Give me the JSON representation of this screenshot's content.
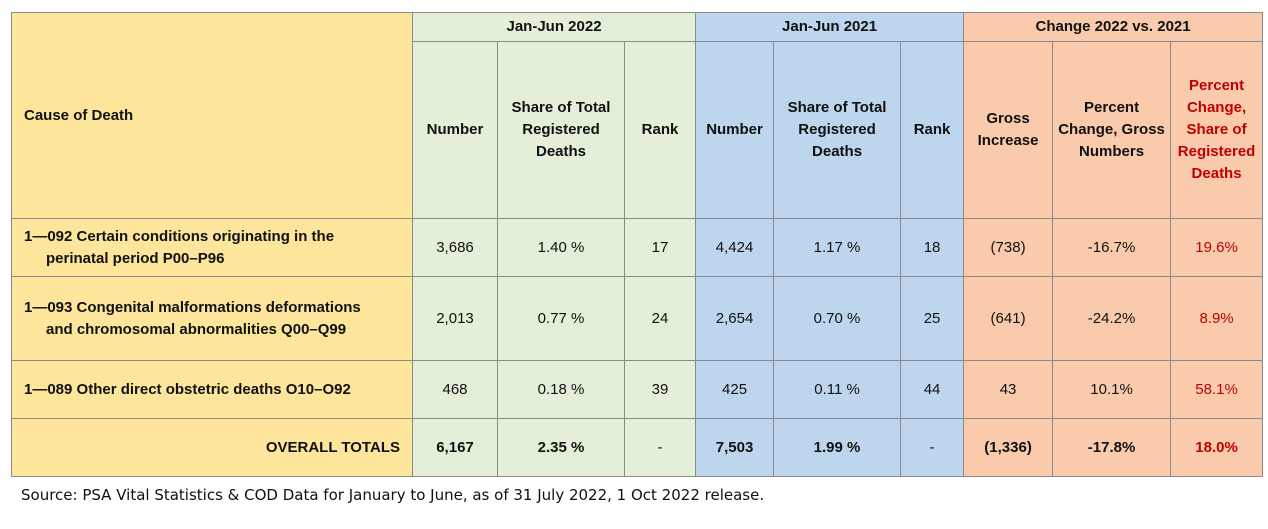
{
  "header": {
    "cause_label": "Cause of Death",
    "group_2022": "Jan-Jun 2022",
    "group_2021": "Jan-Jun 2021",
    "group_change": "Change 2022 vs. 2021",
    "number": "Number",
    "share": "Share of Total Registered Deaths",
    "rank": "Rank",
    "gross_increase": "Gross Increase",
    "pct_change_gross": "Percent Change, Gross Numbers",
    "pct_change_share": "Percent Change, Share of Registered Deaths"
  },
  "rows": [
    {
      "cause_line1": "1—092 Certain conditions originating in the",
      "cause_line2": "perinatal period P00–P96",
      "n2022": "3,686",
      "share2022": "1.40 %",
      "rank2022": "17",
      "n2021": "4,424",
      "share2021": "1.17 %",
      "rank2021": "18",
      "gross": "(738)",
      "pct_gross": "-16.7%",
      "pct_share": "19.6%"
    },
    {
      "cause_line1": "1—093 Congenital malformations deformations",
      "cause_line2": "and chromosomal abnormalities Q00–Q99",
      "n2022": "2,013",
      "share2022": "0.77 %",
      "rank2022": "24",
      "n2021": "2,654",
      "share2021": "0.70 %",
      "rank2021": "25",
      "gross": "(641)",
      "pct_gross": "-24.2%",
      "pct_share": "8.9%"
    },
    {
      "cause_line1": "1—089 Other direct obstetric deaths O10–O92",
      "cause_line2": "",
      "n2022": "468",
      "share2022": "0.18 %",
      "rank2022": "39",
      "n2021": "425",
      "share2021": "0.11 %",
      "rank2021": "44",
      "gross": "43",
      "pct_gross": "10.1%",
      "pct_share": "58.1%"
    }
  ],
  "totals": {
    "label": "OVERALL TOTALS",
    "n2022": "6,167",
    "share2022": "2.35 %",
    "rank2022": "-",
    "n2021": "7,503",
    "share2021": "1.99 %",
    "rank2021": "-",
    "gross": "(1,336)",
    "pct_gross": "-17.8%",
    "pct_share": "18.0%"
  },
  "source": "Source: PSA Vital Statistics & COD Data for January to June, as of 31 July 2022, 1 Oct 2022 release.",
  "colors": {
    "cause_bg": "#fde69b",
    "y2022_bg": "#e3efd9",
    "y2021_bg": "#bdd6ee",
    "change_bg": "#f9cbac",
    "accent_red": "#c00000"
  }
}
